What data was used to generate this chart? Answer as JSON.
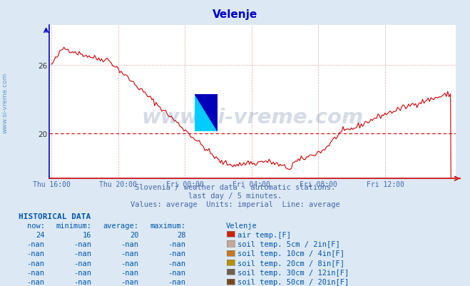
{
  "title": "Velenje",
  "title_color": "#0000cc",
  "bg_color": "#dce9f5",
  "plot_bg_color": "#ffffff",
  "line_color": "#cc0000",
  "avg_line_color": "#cc0000",
  "avg_value": 20,
  "yticks": [
    20,
    26
  ],
  "grid_color": "#ddaaaa",
  "watermark_text": "www.si-vreme.com",
  "watermark_color": "#1a3a7a",
  "watermark_alpha": 0.18,
  "subtitle1": "Slovenia / weather data - automatic stations.",
  "subtitle2": "last day / 5 minutes.",
  "subtitle3": "Values: average  Units: imperial  Line: average",
  "subtitle_color": "#4466aa",
  "hist_title": "HISTORICAL DATA",
  "hist_color": "#0055aa",
  "col_headers": [
    "now:",
    "minimum:",
    "average:",
    "maximum:",
    "Velenje"
  ],
  "row1": [
    "24",
    "16",
    "20",
    "28",
    "#cc2200",
    "air temp.[F]"
  ],
  "row2": [
    "-nan",
    "-nan",
    "-nan",
    "-nan",
    "#c8a898",
    "soil temp. 5cm / 2in[F]"
  ],
  "row3": [
    "-nan",
    "-nan",
    "-nan",
    "-nan",
    "#c87820",
    "soil temp. 10cm / 4in[F]"
  ],
  "row4": [
    "-nan",
    "-nan",
    "-nan",
    "-nan",
    "#b89000",
    "soil temp. 20cm / 8in[F]"
  ],
  "row5": [
    "-nan",
    "-nan",
    "-nan",
    "-nan",
    "#706050",
    "soil temp. 30cm / 12in[F]"
  ],
  "row6": [
    "-nan",
    "-nan",
    "-nan",
    "-nan",
    "#784820",
    "soil temp. 50cm / 20in[F]"
  ],
  "xticklabels": [
    "Thu 16:00",
    "Thu 20:00",
    "Fri 00:00",
    "Fri 04:00",
    "Fri 08:00",
    "Fri 12:00"
  ],
  "xtick_positions": [
    0.0,
    0.1667,
    0.3333,
    0.5,
    0.6667,
    0.8333
  ],
  "ylim_min": 16.0,
  "ylim_max": 29.5,
  "left_spine_color": "#0000cc",
  "bottom_spine_color": "#cc0000",
  "ylabel_side_text": "www.si-vreme.com",
  "ylabel_side_color": "#6699cc",
  "ylabel_side_fontsize": 6.5
}
